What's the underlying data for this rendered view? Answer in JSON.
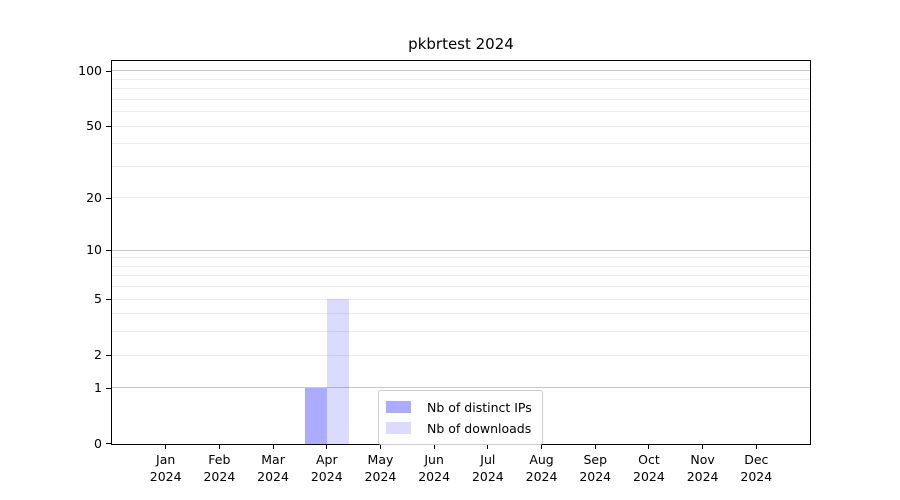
{
  "title": "pkbrtest 2024",
  "chart_data": {
    "type": "bar",
    "title": "pkbrtest 2024",
    "yscale": "log1p",
    "ylim": [
      0,
      113
    ],
    "yticks": [
      0,
      1,
      2,
      5,
      10,
      20,
      50,
      100
    ],
    "major_gridlines": [
      1,
      10,
      100
    ],
    "minor_gridlines": [
      2,
      3,
      4,
      5,
      6,
      7,
      8,
      9,
      20,
      30,
      40,
      50,
      60,
      70,
      80,
      90
    ],
    "grid": "horizontal",
    "legend_position": "lower center",
    "categories": [
      {
        "month": "Jan",
        "year": "2024"
      },
      {
        "month": "Feb",
        "year": "2024"
      },
      {
        "month": "Mar",
        "year": "2024"
      },
      {
        "month": "Apr",
        "year": "2024"
      },
      {
        "month": "May",
        "year": "2024"
      },
      {
        "month": "Jun",
        "year": "2024"
      },
      {
        "month": "Jul",
        "year": "2024"
      },
      {
        "month": "Aug",
        "year": "2024"
      },
      {
        "month": "Sep",
        "year": "2024"
      },
      {
        "month": "Oct",
        "year": "2024"
      },
      {
        "month": "Nov",
        "year": "2024"
      },
      {
        "month": "Dec",
        "year": "2024"
      }
    ],
    "series": [
      {
        "name": "Nb of distinct IPs",
        "color": "rgba(0,0,255,0.33)",
        "values": [
          0,
          0,
          0,
          1,
          0,
          0,
          0,
          0,
          0,
          0,
          0,
          0
        ]
      },
      {
        "name": "Nb of downloads",
        "color": "rgba(0,0,255,0.14)",
        "values": [
          0,
          0,
          0,
          5,
          0,
          0,
          0,
          0,
          0,
          0,
          0,
          0
        ]
      }
    ]
  },
  "colors": {
    "background": "#ffffff",
    "spine": "#000000",
    "major_grid": "#c9c9c9",
    "minor_grid": "#ececec",
    "tick_label": "#000000",
    "legend_border": "#cccccc"
  }
}
